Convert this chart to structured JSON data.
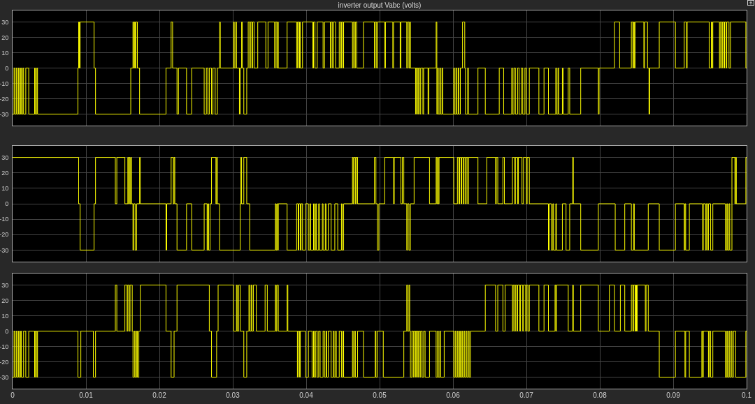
{
  "chart_data": [
    {
      "type": "step",
      "title": "inverter output Vabc (volts)",
      "xlim": [
        0,
        0.1
      ],
      "xticks": [
        0,
        0.01,
        0.02,
        0.03,
        0.04,
        0.05,
        0.06,
        0.07,
        0.08,
        0.09,
        0.1
      ],
      "ylim": [
        -37.5,
        37.5
      ],
      "yticks": [
        -30,
        -20,
        -10,
        0,
        10,
        20,
        30
      ],
      "grid": true,
      "tick_labels": "y",
      "x": [
        0,
        0.0002,
        0.0003,
        0.0005,
        0.0006,
        0.0008,
        0.0009,
        0.0011,
        0.0012,
        0.0014,
        0.0015,
        0.0018,
        0.0022,
        0.003,
        0.0031,
        0.0033,
        0.0034,
        0.0089,
        0.009,
        0.0091,
        0.0092,
        0.0111,
        0.0113,
        0.0161,
        0.0164,
        0.0165,
        0.0166,
        0.0167,
        0.0168,
        0.017,
        0.0173,
        0.0209,
        0.0216,
        0.0218,
        0.0224,
        0.0226,
        0.0237,
        0.0244,
        0.0261,
        0.0264,
        0.0266,
        0.0268,
        0.0271,
        0.0273,
        0.0276,
        0.0279,
        0.0282,
        0.0283,
        0.0301,
        0.0302,
        0.0304,
        0.0305,
        0.0309,
        0.031,
        0.0312,
        0.0313,
        0.0315,
        0.0319,
        0.0321,
        0.0323,
        0.0324,
        0.0326,
        0.0327,
        0.0329,
        0.0334,
        0.0345,
        0.0348,
        0.0357,
        0.0358,
        0.036,
        0.0361,
        0.0362,
        0.0374,
        0.0387,
        0.0388,
        0.039,
        0.0391,
        0.0392,
        0.0395,
        0.0409,
        0.041,
        0.0412,
        0.0415,
        0.0423,
        0.0425,
        0.0433,
        0.0434,
        0.0436,
        0.0437,
        0.044,
        0.0445,
        0.0447,
        0.0448,
        0.045,
        0.0451,
        0.0463,
        0.0464,
        0.0466,
        0.0467,
        0.0469,
        0.0478,
        0.0493,
        0.0494,
        0.0496,
        0.0497,
        0.0507,
        0.0508,
        0.0518,
        0.0519,
        0.0528,
        0.0529,
        0.0537,
        0.0538,
        0.054,
        0.0541,
        0.0542,
        0.0549,
        0.055,
        0.0552,
        0.0553,
        0.0555,
        0.0556,
        0.0559,
        0.056,
        0.0566,
        0.0567,
        0.0577,
        0.0578,
        0.0579,
        0.058,
        0.0582,
        0.0583,
        0.0585,
        0.0586,
        0.0601,
        0.0602,
        0.0604,
        0.0605,
        0.0607,
        0.0608,
        0.061,
        0.0613,
        0.0616,
        0.0617,
        0.062,
        0.0621,
        0.0634,
        0.0644,
        0.0663,
        0.0669,
        0.068,
        0.0681,
        0.0683,
        0.0685,
        0.0688,
        0.069,
        0.0693,
        0.0695,
        0.0698,
        0.07,
        0.0704,
        0.0717,
        0.0724,
        0.073,
        0.074,
        0.0741,
        0.0743,
        0.0744,
        0.0749,
        0.075,
        0.0757,
        0.0759,
        0.0774,
        0.0798,
        0.0799,
        0.082,
        0.0827,
        0.0843,
        0.0845,
        0.0846,
        0.0847,
        0.0848,
        0.086,
        0.0861,
        0.0865,
        0.0867,
        0.0868,
        0.0881,
        0.0903,
        0.0915,
        0.0918,
        0.0919,
        0.0949,
        0.0952,
        0.0953,
        0.0954,
        0.0963,
        0.0964,
        0.0966,
        0.0967,
        0.0969,
        0.097,
        0.0972,
        0.0973,
        0.0976,
        0.0978,
        0.0999,
        0.1
      ],
      "series": [
        {
          "color": "#ffff00",
          "values": [
            -30,
            0,
            -30,
            0,
            -30,
            0,
            -30,
            0,
            -30,
            0,
            -30,
            0,
            -30,
            0,
            -30,
            0,
            -30,
            0,
            30,
            0,
            30,
            0,
            -30,
            0,
            30,
            0,
            30,
            0,
            30,
            0,
            -30,
            0,
            30,
            0,
            -30,
            0,
            -30,
            0,
            -30,
            0,
            -30,
            0,
            -30,
            0,
            -30,
            0,
            30,
            0,
            30,
            0,
            30,
            0,
            -30,
            0,
            30,
            0,
            -30,
            0,
            30,
            0,
            30,
            0,
            30,
            0,
            30,
            0,
            30,
            0,
            30,
            0,
            30,
            0,
            30,
            0,
            30,
            0,
            30,
            0,
            30,
            0,
            30,
            0,
            30,
            0,
            30,
            0,
            30,
            0,
            30,
            0,
            30,
            0,
            30,
            0,
            30,
            0,
            30,
            0,
            30,
            0,
            30,
            0,
            30,
            0,
            30,
            0,
            30,
            0,
            30,
            0,
            30,
            0,
            30,
            0,
            30,
            0,
            -30,
            0,
            -30,
            0,
            -30,
            0,
            -30,
            0,
            -30,
            0,
            30,
            -30,
            0,
            -30,
            0,
            -30,
            0,
            -30,
            0,
            -30,
            0,
            -30,
            0,
            -30,
            0,
            30,
            0,
            -30,
            0,
            -30,
            0,
            -30,
            0,
            -30,
            0,
            -30,
            0,
            -30,
            0,
            -30,
            0,
            -30,
            0,
            -30,
            0,
            -30,
            0,
            -30,
            0,
            -30,
            0,
            -30,
            0,
            -30,
            0,
            -30,
            0,
            -30,
            0,
            30,
            0,
            30,
            0,
            30,
            0,
            30,
            0,
            30,
            0,
            -30,
            0,
            30,
            0,
            30,
            0,
            30,
            0,
            30,
            0,
            30,
            0,
            30,
            0,
            30,
            0,
            30,
            0,
            30,
            0,
            30,
            0,
            0
          ]
        }
      ]
    },
    {
      "type": "step",
      "xlim": [
        0,
        0.1
      ],
      "xticks": [
        0,
        0.01,
        0.02,
        0.03,
        0.04,
        0.05,
        0.06,
        0.07,
        0.08,
        0.09,
        0.1
      ],
      "ylim": [
        -37.5,
        37.5
      ],
      "yticks": [
        -30,
        -20,
        -10,
        0,
        10,
        20,
        30
      ],
      "grid": true,
      "tick_labels": "y",
      "x": [
        0,
        0.009,
        0.0092,
        0.0111,
        0.0113,
        0.014,
        0.0142,
        0.0153,
        0.0157,
        0.0158,
        0.0159,
        0.016,
        0.0161,
        0.0162,
        0.0164,
        0.0165,
        0.0167,
        0.0169,
        0.0173,
        0.0174,
        0.0209,
        0.021,
        0.0216,
        0.0219,
        0.022,
        0.0221,
        0.0224,
        0.0237,
        0.0244,
        0.0261,
        0.0265,
        0.0266,
        0.0267,
        0.0269,
        0.0271,
        0.0277,
        0.0278,
        0.0279,
        0.0282,
        0.031,
        0.0311,
        0.0312,
        0.0315,
        0.0319,
        0.0323,
        0.0358,
        0.0359,
        0.036,
        0.0361,
        0.0362,
        0.0374,
        0.0387,
        0.0389,
        0.039,
        0.0392,
        0.0393,
        0.0395,
        0.0399,
        0.0403,
        0.0405,
        0.0406,
        0.041,
        0.0411,
        0.0413,
        0.0414,
        0.0417,
        0.0418,
        0.0422,
        0.0423,
        0.0426,
        0.0427,
        0.043,
        0.0434,
        0.0439,
        0.0443,
        0.0448,
        0.0449,
        0.0451,
        0.0463,
        0.0464,
        0.0465,
        0.0467,
        0.0468,
        0.047,
        0.0493,
        0.0495,
        0.0497,
        0.0499,
        0.0507,
        0.0519,
        0.052,
        0.0529,
        0.0531,
        0.0533,
        0.0537,
        0.0538,
        0.054,
        0.0542,
        0.0547,
        0.0568,
        0.0577,
        0.0578,
        0.0579,
        0.058,
        0.0581,
        0.0601,
        0.0606,
        0.0608,
        0.0609,
        0.0611,
        0.0612,
        0.0614,
        0.0615,
        0.0617,
        0.0618,
        0.062,
        0.0621,
        0.0634,
        0.0646,
        0.0658,
        0.0659,
        0.0661,
        0.0668,
        0.067,
        0.0681,
        0.0684,
        0.0685,
        0.0688,
        0.0689,
        0.0694,
        0.0696,
        0.07,
        0.0701,
        0.0704,
        0.073,
        0.0731,
        0.0734,
        0.0736,
        0.0737,
        0.074,
        0.0741,
        0.0749,
        0.0754,
        0.0759,
        0.0763,
        0.0764,
        0.0774,
        0.0798,
        0.0821,
        0.0834,
        0.0843,
        0.0846,
        0.0847,
        0.0866,
        0.0881,
        0.0903,
        0.0915,
        0.0916,
        0.0917,
        0.0922,
        0.094,
        0.0941,
        0.0944,
        0.0945,
        0.0947,
        0.0948,
        0.0951,
        0.0954,
        0.0971,
        0.0973,
        0.0974,
        0.0976,
        0.0977,
        0.098,
        0.0984,
        0.0985,
        0.0986,
        0.0999,
        0.1
      ],
      "series": [
        {
          "color": "#ffff00",
          "values": [
            30,
            0,
            -30,
            0,
            30,
            0,
            30,
            0,
            30,
            0,
            30,
            0,
            30,
            0,
            -30,
            0,
            -30,
            0,
            30,
            0,
            -30,
            0,
            30,
            0,
            30,
            0,
            -30,
            0,
            -30,
            0,
            -30,
            0,
            -30,
            0,
            30,
            0,
            30,
            0,
            -30,
            0,
            30,
            0,
            30,
            0,
            -30,
            0,
            -30,
            0,
            -30,
            0,
            -30,
            0,
            -30,
            0,
            -30,
            0,
            -30,
            0,
            -30,
            0,
            -30,
            0,
            -30,
            0,
            -30,
            0,
            -30,
            0,
            -30,
            0,
            -30,
            0,
            -30,
            0,
            -30,
            0,
            -30,
            0,
            30,
            0,
            30,
            0,
            30,
            0,
            30,
            0,
            -30,
            0,
            30,
            0,
            30,
            0,
            30,
            0,
            -30,
            0,
            -30,
            0,
            30,
            0,
            30,
            0,
            30,
            0,
            30,
            0,
            30,
            0,
            30,
            0,
            30,
            0,
            30,
            0,
            30,
            0,
            30,
            0,
            30,
            0,
            30,
            0,
            30,
            0,
            30,
            0,
            30,
            0,
            30,
            0,
            30,
            0,
            30,
            0,
            -30,
            0,
            -30,
            0,
            -30,
            0,
            -30,
            0,
            -30,
            0,
            30,
            0,
            -30,
            0,
            -30,
            0,
            -30,
            0,
            -30,
            0,
            -30,
            0,
            -30,
            0,
            -30,
            0,
            -30,
            0,
            -30,
            0,
            -30,
            0,
            -30,
            0,
            -30,
            0,
            -30,
            0,
            -30,
            30,
            0,
            30,
            0,
            30,
            30
          ]
        }
      ]
    },
    {
      "type": "step",
      "xlim": [
        0,
        0.1
      ],
      "xticks": [
        0,
        0.01,
        0.02,
        0.03,
        0.04,
        0.05,
        0.06,
        0.07,
        0.08,
        0.09,
        0.1
      ],
      "ylim": [
        -37.5,
        37.5
      ],
      "yticks": [
        -30,
        -20,
        -10,
        0,
        10,
        20,
        30
      ],
      "grid": true,
      "x": [
        0,
        0.0002,
        0.0003,
        0.0005,
        0.0006,
        0.0008,
        0.0009,
        0.0011,
        0.0012,
        0.0015,
        0.0018,
        0.0022,
        0.003,
        0.0031,
        0.0033,
        0.0034,
        0.0089,
        0.0093,
        0.011,
        0.0113,
        0.014,
        0.0142,
        0.0153,
        0.0156,
        0.0157,
        0.0159,
        0.016,
        0.0163,
        0.0164,
        0.0166,
        0.0167,
        0.0169,
        0.017,
        0.0172,
        0.0174,
        0.0209,
        0.0216,
        0.022,
        0.0224,
        0.0268,
        0.0271,
        0.0278,
        0.028,
        0.0301,
        0.0305,
        0.0306,
        0.0308,
        0.031,
        0.0315,
        0.0319,
        0.0322,
        0.0323,
        0.0325,
        0.0326,
        0.0328,
        0.0332,
        0.0344,
        0.0347,
        0.0358,
        0.0359,
        0.036,
        0.0362,
        0.0374,
        0.0375,
        0.0388,
        0.0389,
        0.0391,
        0.0392,
        0.0399,
        0.0403,
        0.0408,
        0.041,
        0.0411,
        0.0413,
        0.0415,
        0.0417,
        0.0419,
        0.0423,
        0.0425,
        0.0427,
        0.0428,
        0.043,
        0.0434,
        0.0437,
        0.0438,
        0.044,
        0.0441,
        0.0445,
        0.0448,
        0.045,
        0.0451,
        0.0463,
        0.0464,
        0.0466,
        0.0467,
        0.047,
        0.0478,
        0.0494,
        0.0495,
        0.0497,
        0.0505,
        0.0533,
        0.0537,
        0.0538,
        0.054,
        0.0541,
        0.0542,
        0.0544,
        0.0546,
        0.0547,
        0.0549,
        0.055,
        0.0552,
        0.0553,
        0.0555,
        0.0556,
        0.0558,
        0.056,
        0.0562,
        0.0568,
        0.0577,
        0.0579,
        0.058,
        0.0582,
        0.0583,
        0.0588,
        0.0601,
        0.0603,
        0.0604,
        0.0606,
        0.0607,
        0.0609,
        0.061,
        0.0612,
        0.0613,
        0.0615,
        0.0616,
        0.0618,
        0.0619,
        0.0621,
        0.0622,
        0.0624,
        0.0644,
        0.0658,
        0.0661,
        0.0668,
        0.0671,
        0.0681,
        0.0682,
        0.0684,
        0.0685,
        0.0687,
        0.0688,
        0.0691,
        0.0692,
        0.0695,
        0.0696,
        0.0699,
        0.07,
        0.0702,
        0.0704,
        0.0717,
        0.0724,
        0.073,
        0.0739,
        0.074,
        0.0741,
        0.0757,
        0.0763,
        0.0764,
        0.0774,
        0.0798,
        0.0813,
        0.082,
        0.0828,
        0.0834,
        0.0843,
        0.0845,
        0.0846,
        0.0848,
        0.0849,
        0.085,
        0.0851,
        0.0862,
        0.0863,
        0.0866,
        0.0881,
        0.0903,
        0.0916,
        0.0917,
        0.0922,
        0.0939,
        0.094,
        0.0941,
        0.0948,
        0.0949,
        0.0951,
        0.0954,
        0.0971,
        0.0973,
        0.0974,
        0.0976,
        0.0977,
        0.0979,
        0.098,
        0.0982,
        0.0985,
        0.0999,
        0.1
      ],
      "series": [
        {
          "color": "#ffff00",
          "values": [
            -30,
            0,
            -30,
            0,
            -30,
            0,
            -30,
            0,
            -30,
            0,
            -30,
            0,
            -30,
            0,
            -30,
            0,
            -30,
            0,
            -30,
            0,
            30,
            0,
            30,
            0,
            30,
            0,
            30,
            0,
            -30,
            0,
            -30,
            0,
            -30,
            0,
            30,
            0,
            -30,
            0,
            30,
            0,
            -30,
            0,
            30,
            0,
            30,
            0,
            30,
            0,
            -30,
            0,
            30,
            0,
            30,
            0,
            30,
            0,
            30,
            0,
            30,
            0,
            30,
            0,
            30,
            0,
            -30,
            0,
            -30,
            0,
            -30,
            0,
            -30,
            0,
            -30,
            0,
            -30,
            0,
            -30,
            0,
            -30,
            0,
            -30,
            0,
            -30,
            0,
            -30,
            0,
            -30,
            0,
            -30,
            0,
            -30,
            0,
            -30,
            0,
            -30,
            0,
            -30,
            0,
            -30,
            0,
            -30,
            0,
            30,
            0,
            30,
            0,
            -30,
            0,
            -30,
            0,
            -30,
            0,
            -30,
            0,
            -30,
            0,
            -30,
            0,
            -30,
            0,
            -30,
            0,
            -30,
            0,
            -30,
            0,
            -30,
            0,
            -30,
            0,
            -30,
            0,
            -30,
            0,
            -30,
            0,
            -30,
            0,
            -30,
            0,
            -30,
            0,
            30,
            0,
            30,
            0,
            30,
            0,
            30,
            0,
            30,
            0,
            30,
            0,
            30,
            0,
            30,
            0,
            30,
            0,
            30,
            0,
            30,
            0,
            30,
            0,
            30,
            0,
            30,
            0,
            30,
            0,
            30,
            0,
            30,
            0,
            30,
            0,
            30,
            0,
            30,
            0,
            30,
            0,
            30,
            0,
            -30,
            0,
            -30,
            0,
            -30,
            0,
            -30,
            0,
            -30,
            0,
            -30,
            0,
            -30,
            0,
            -30,
            0,
            -30,
            0,
            -30,
            0,
            -30,
            0,
            0
          ]
        }
      ]
    }
  ]
}
